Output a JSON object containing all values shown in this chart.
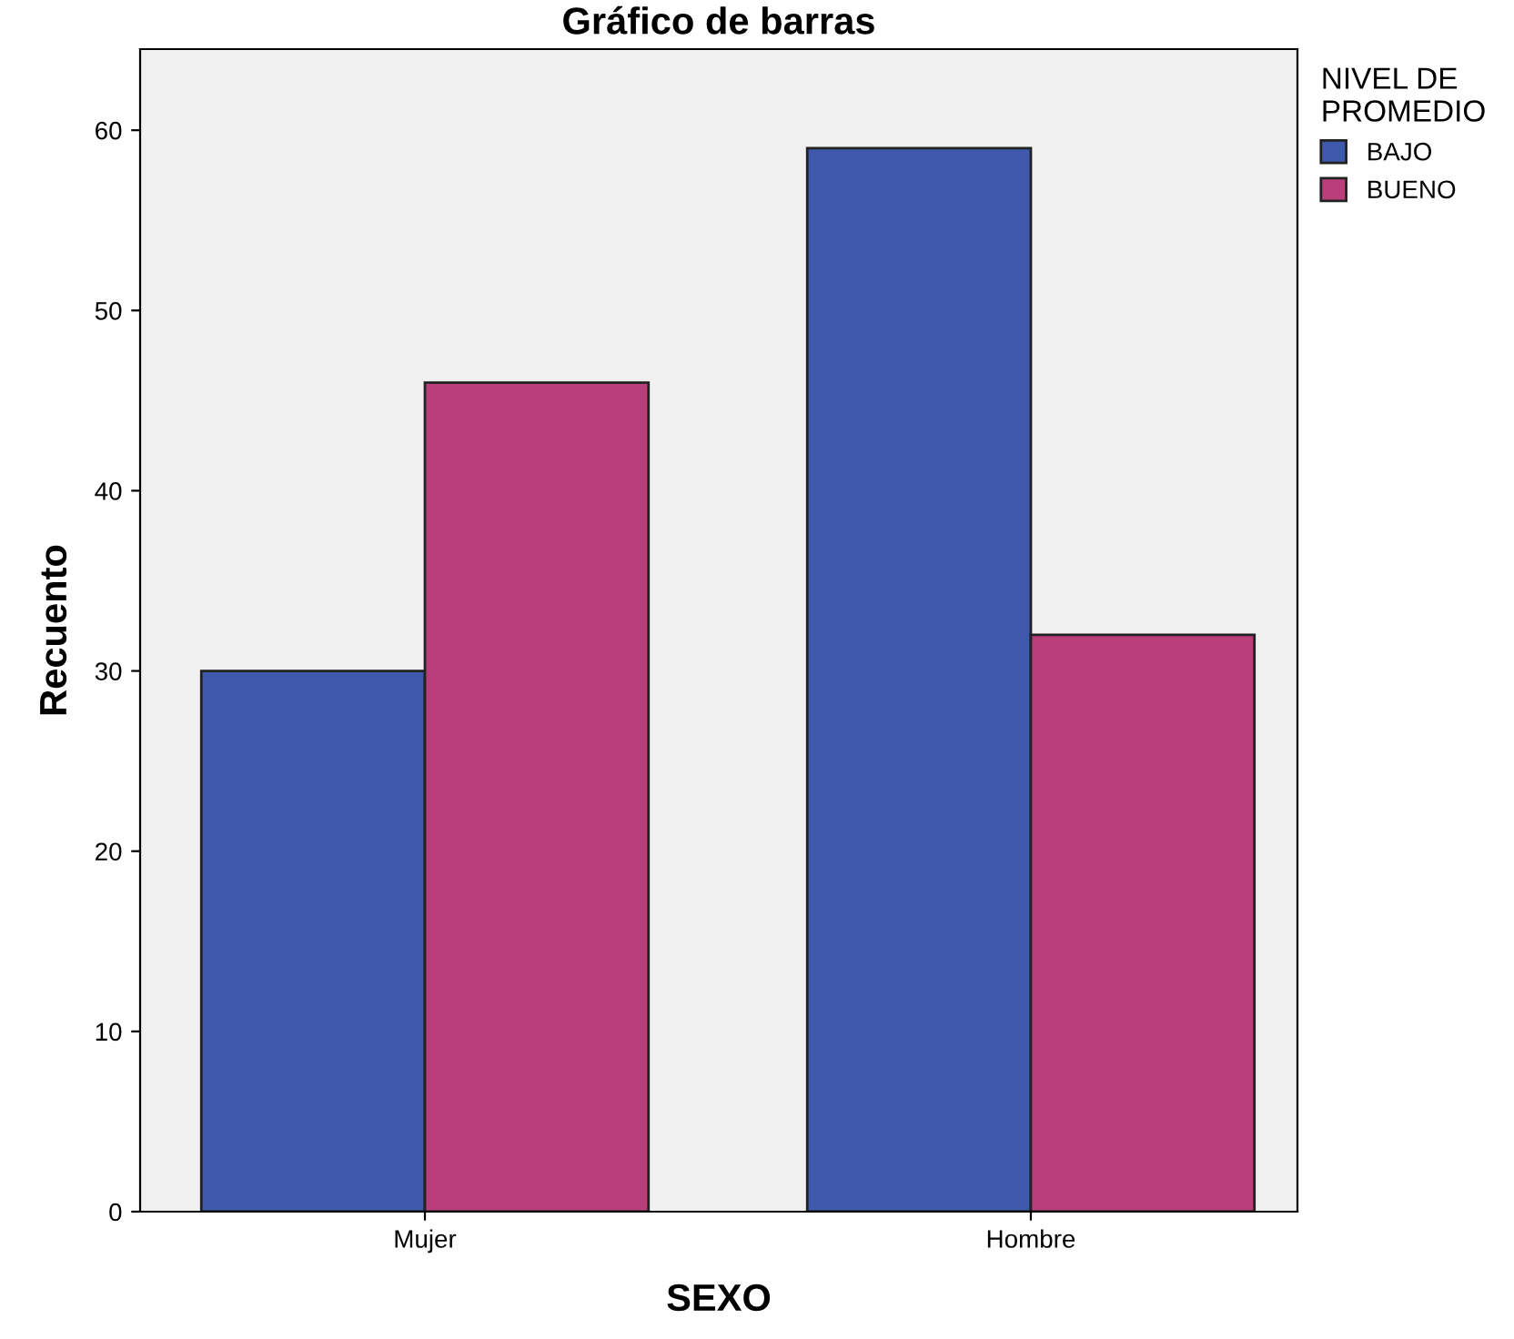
{
  "chart_data": {
    "type": "bar",
    "title": "Gráfico de barras",
    "xlabel": "SEXO",
    "ylabel": "Recuento",
    "categories": [
      "Mujer",
      "Hombre"
    ],
    "series": [
      {
        "name": "BAJO",
        "color": "#3e58ac",
        "values": [
          30,
          59
        ]
      },
      {
        "name": "BUENO",
        "color": "#b93e7a",
        "values": [
          46,
          32
        ]
      }
    ],
    "legend_title": "NIVEL DE\nPROMEDIO",
    "legend": "top right",
    "ylim": [
      0,
      64.5
    ],
    "yticks": [
      0,
      10,
      20,
      30,
      40,
      50,
      60
    ],
    "grid": false
  }
}
